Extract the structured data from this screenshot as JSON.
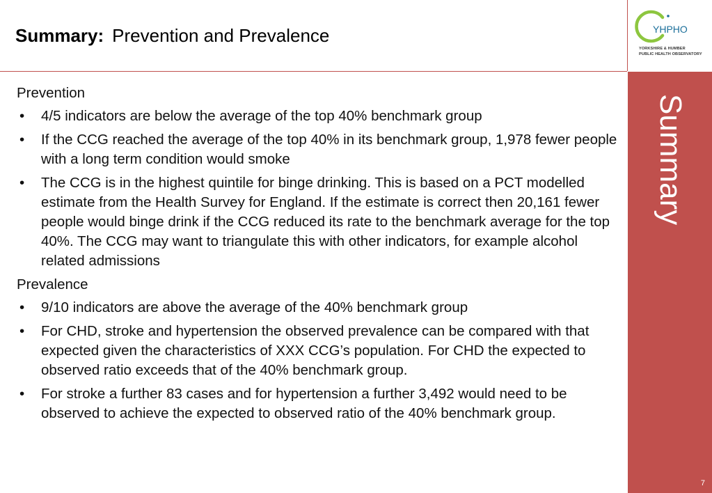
{
  "title": {
    "bold": "Summary:",
    "rest": "Prevention and Prevalence"
  },
  "logo": {
    "name": "YHPHO",
    "line1": "YORKSHIRE & HUMBER",
    "line2": "PUBLIC HEALTH OBSERVATORY",
    "colors": {
      "arc": "#8dc63f",
      "text": "#1b6f9a"
    }
  },
  "sidebar": {
    "label": "Summary",
    "page_number": "7",
    "color": "#c0504d"
  },
  "sections": [
    {
      "heading": "Prevention",
      "bullets": [
        "4/5 indicators are below the average of the top 40% benchmark group",
        "If the CCG reached the average of the top 40% in its benchmark group, 1,978 fewer people with a long term condition would smoke",
        "The CCG is in the highest quintile for binge drinking. This is based on a PCT modelled estimate from the Health Survey for England. If the estimate is correct then 20,161 fewer people would binge drink if the CCG reduced its rate to the benchmark average for the top 40%.  The CCG may want to triangulate this with other indicators, for example alcohol related admissions"
      ]
    },
    {
      "heading": "Prevalence",
      "bullets": [
        "9/10 indicators are above the average of the 40% benchmark group",
        "For CHD, stroke and hypertension the observed prevalence can be compared with that expected given the characteristics of XXX CCG’s population. For CHD the expected to observed ratio exceeds that of the 40% benchmark group.",
        "For stroke a further 83 cases and for hypertension a further 3,492 would need to be observed to achieve the expected to observed ratio of the 40% benchmark group."
      ]
    }
  ]
}
